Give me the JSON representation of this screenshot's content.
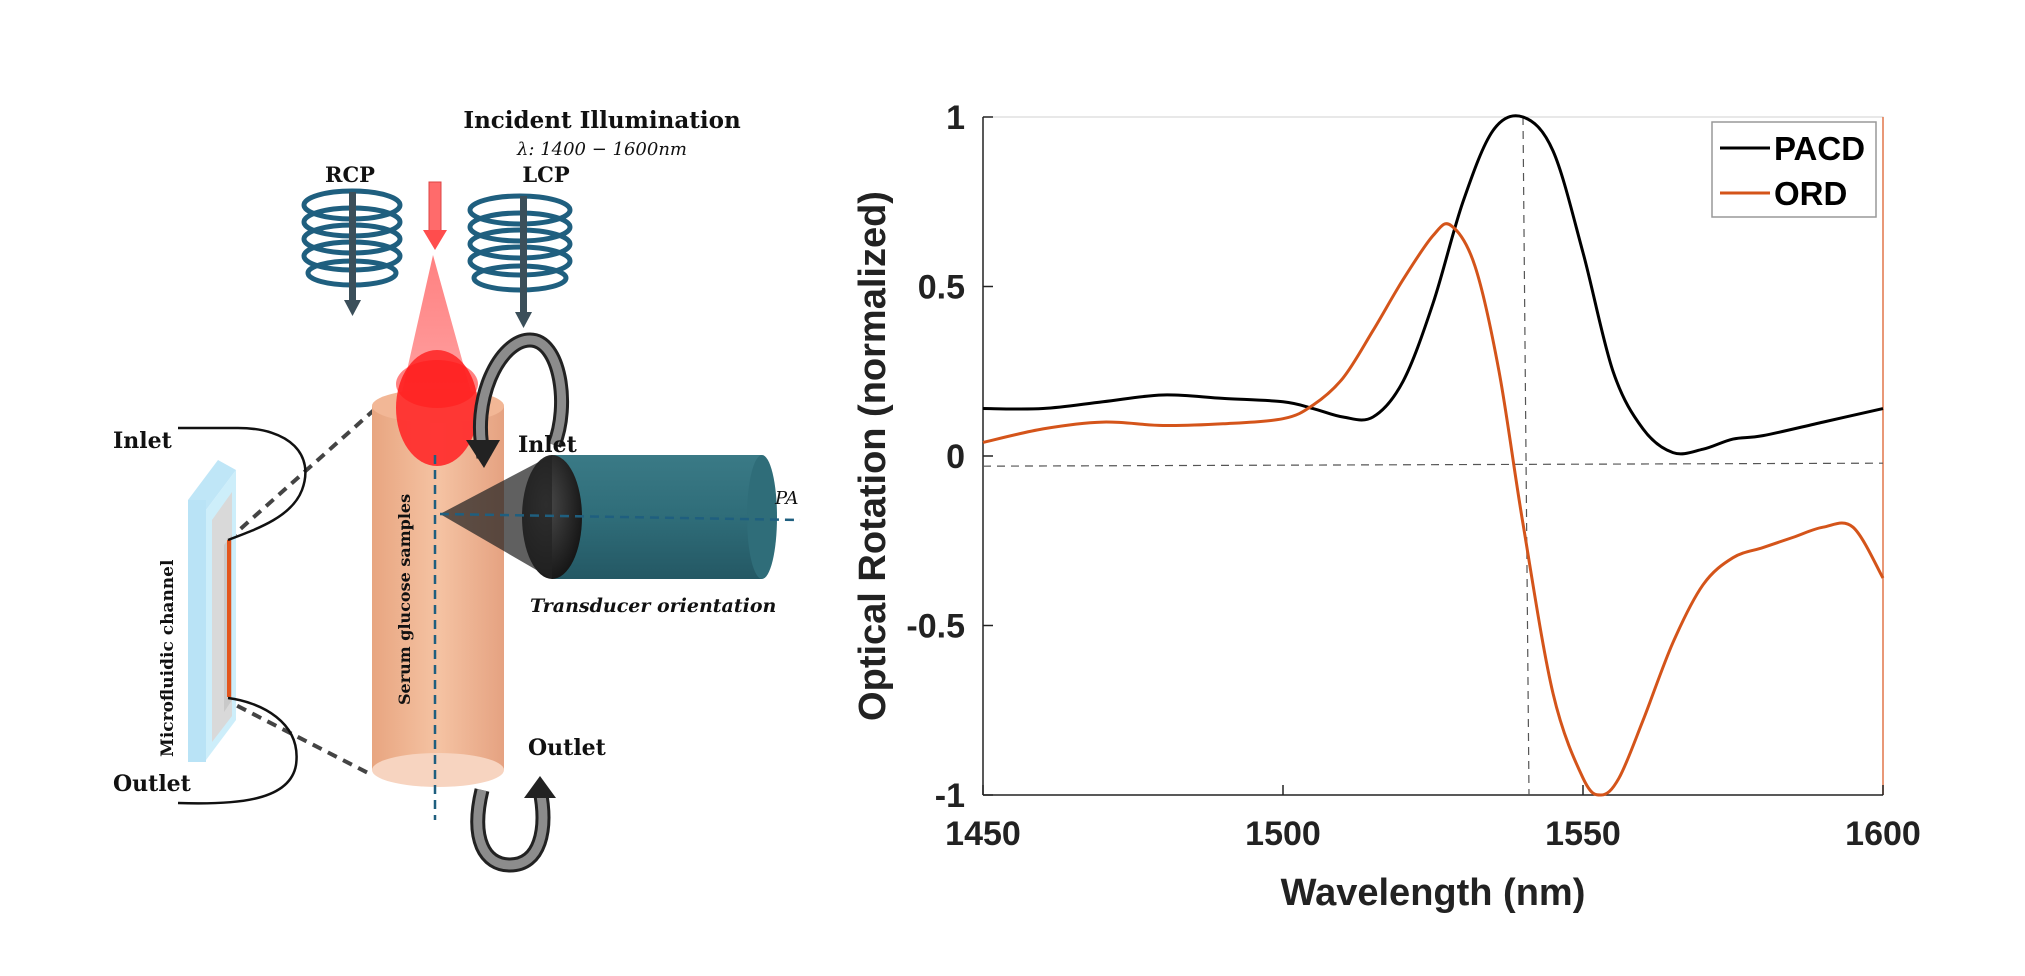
{
  "diagram": {
    "title": "Incident Illumination",
    "wavelength_range": "λ: 1400  − 1600nm",
    "rcp_label": "RCP",
    "lcp_label": "LCP",
    "inlet_left": "Inlet",
    "outlet_left": "Outlet",
    "inlet_right": "Inlet",
    "outlet_right": "Outlet",
    "microfluidic_label": "Microfluidic channel",
    "sample_label": "Serum glucose samples",
    "transducer_label": "Transducer orientation",
    "pa_label": "PA"
  },
  "chart_data": {
    "type": "line",
    "xlabel": "Wavelength (nm)",
    "ylabel": "Optical Rotation (normalized)",
    "xlim": [
      1450,
      1600
    ],
    "ylim": [
      -1,
      1
    ],
    "xticks": [
      1450,
      1500,
      1550,
      1600
    ],
    "yticks": [
      -1,
      -0.5,
      0,
      0.5,
      1
    ],
    "xtick_labels": [
      "1450",
      "1500",
      "1550",
      "1600"
    ],
    "ytick_labels": [
      "-1",
      "-0.5",
      "0",
      "0.5",
      "1"
    ],
    "legend_position": "top-right",
    "grid": false,
    "reference_lines": {
      "x": 1540,
      "y": -0.03
    },
    "series": [
      {
        "name": "PACD",
        "color": "#000000",
        "x": [
          1450,
          1460,
          1470,
          1480,
          1490,
          1500,
          1505,
          1510,
          1515,
          1520,
          1525,
          1530,
          1535,
          1540,
          1545,
          1550,
          1555,
          1560,
          1565,
          1570,
          1575,
          1580,
          1590,
          1600
        ],
        "y": [
          0.14,
          0.14,
          0.16,
          0.18,
          0.17,
          0.16,
          0.14,
          0.115,
          0.115,
          0.22,
          0.45,
          0.75,
          0.96,
          1.0,
          0.9,
          0.6,
          0.25,
          0.08,
          0.01,
          0.02,
          0.05,
          0.06,
          0.1,
          0.14
        ]
      },
      {
        "name": "ORD",
        "color": "#d4541a",
        "x": [
          1450,
          1460,
          1470,
          1480,
          1490,
          1500,
          1505,
          1510,
          1515,
          1520,
          1525,
          1528,
          1532,
          1536,
          1540,
          1545,
          1550,
          1553,
          1556,
          1560,
          1565,
          1570,
          1575,
          1580,
          1585,
          1590,
          1595,
          1600
        ],
        "y": [
          0.04,
          0.08,
          0.1,
          0.09,
          0.095,
          0.11,
          0.15,
          0.23,
          0.37,
          0.52,
          0.65,
          0.68,
          0.56,
          0.25,
          -0.2,
          -0.7,
          -0.95,
          -1.0,
          -0.95,
          -0.78,
          -0.55,
          -0.38,
          -0.3,
          -0.27,
          -0.24,
          -0.21,
          -0.21,
          -0.36
        ]
      }
    ]
  }
}
